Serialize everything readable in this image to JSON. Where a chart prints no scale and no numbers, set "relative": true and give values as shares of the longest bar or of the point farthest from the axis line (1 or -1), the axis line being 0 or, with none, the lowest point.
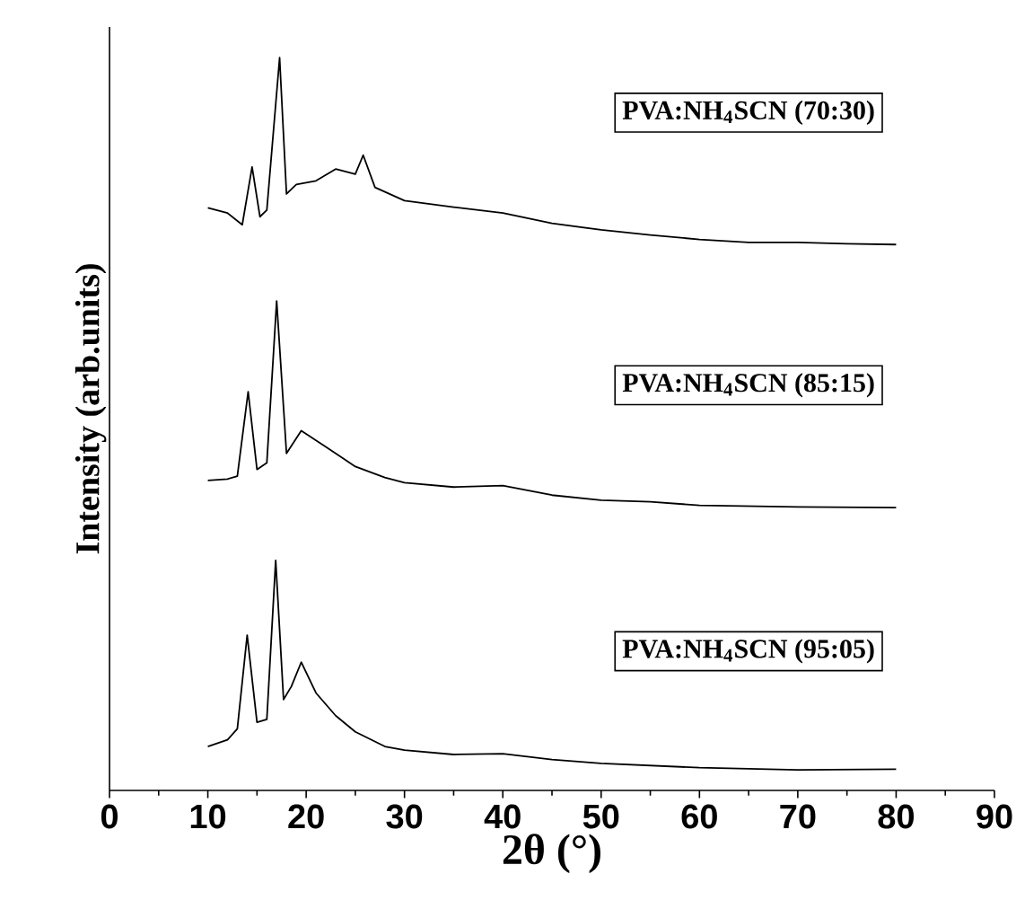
{
  "chart_data": {
    "type": "line",
    "relative": true,
    "xlabel": "2θ (°)",
    "ylabel": "Intensity (arb.units)",
    "xlim": [
      0,
      90
    ],
    "xticks": [
      0,
      10,
      20,
      30,
      40,
      50,
      60,
      70,
      80,
      90
    ],
    "series": [
      {
        "name": "PVA:NH$_{4}$SCN (70:30)",
        "color": "#000000",
        "x": [
          10,
          12,
          13.5,
          14.5,
          15.3,
          16,
          17.3,
          18,
          19,
          21,
          23,
          25,
          25.8,
          27,
          30,
          35,
          40,
          45,
          50,
          55,
          60,
          65,
          70,
          75,
          80
        ],
        "values": [
          0.795,
          0.788,
          0.772,
          0.851,
          0.783,
          0.792,
          1.0,
          0.814,
          0.827,
          0.832,
          0.848,
          0.841,
          0.867,
          0.823,
          0.805,
          0.796,
          0.788,
          0.774,
          0.765,
          0.758,
          0.752,
          0.748,
          0.748,
          0.746,
          0.745
        ]
      },
      {
        "name": "PVA:NH$_{4}$SCN (85:15)",
        "color": "#000000",
        "x": [
          10,
          12,
          13,
          14.1,
          15,
          16,
          17,
          18,
          19.5,
          22,
          25,
          28,
          30,
          35,
          40,
          45,
          50,
          55,
          60,
          70,
          80
        ],
        "values": [
          0.423,
          0.425,
          0.429,
          0.544,
          0.438,
          0.447,
          0.668,
          0.46,
          0.491,
          0.469,
          0.442,
          0.427,
          0.42,
          0.414,
          0.416,
          0.403,
          0.396,
          0.394,
          0.389,
          0.387,
          0.386
        ]
      },
      {
        "name": "PVA:NH$_{4}$SCN (95:05)",
        "color": "#000000",
        "x": [
          10,
          12,
          13,
          14,
          15,
          16,
          16.9,
          17.7,
          18.5,
          19.5,
          21,
          23,
          25,
          28,
          30,
          35,
          40,
          45,
          50,
          60,
          70,
          80
        ],
        "values": [
          0.06,
          0.069,
          0.084,
          0.212,
          0.093,
          0.097,
          0.314,
          0.124,
          0.142,
          0.175,
          0.133,
          0.102,
          0.08,
          0.06,
          0.055,
          0.049,
          0.05,
          0.042,
          0.037,
          0.031,
          0.028,
          0.029
        ]
      }
    ]
  }
}
